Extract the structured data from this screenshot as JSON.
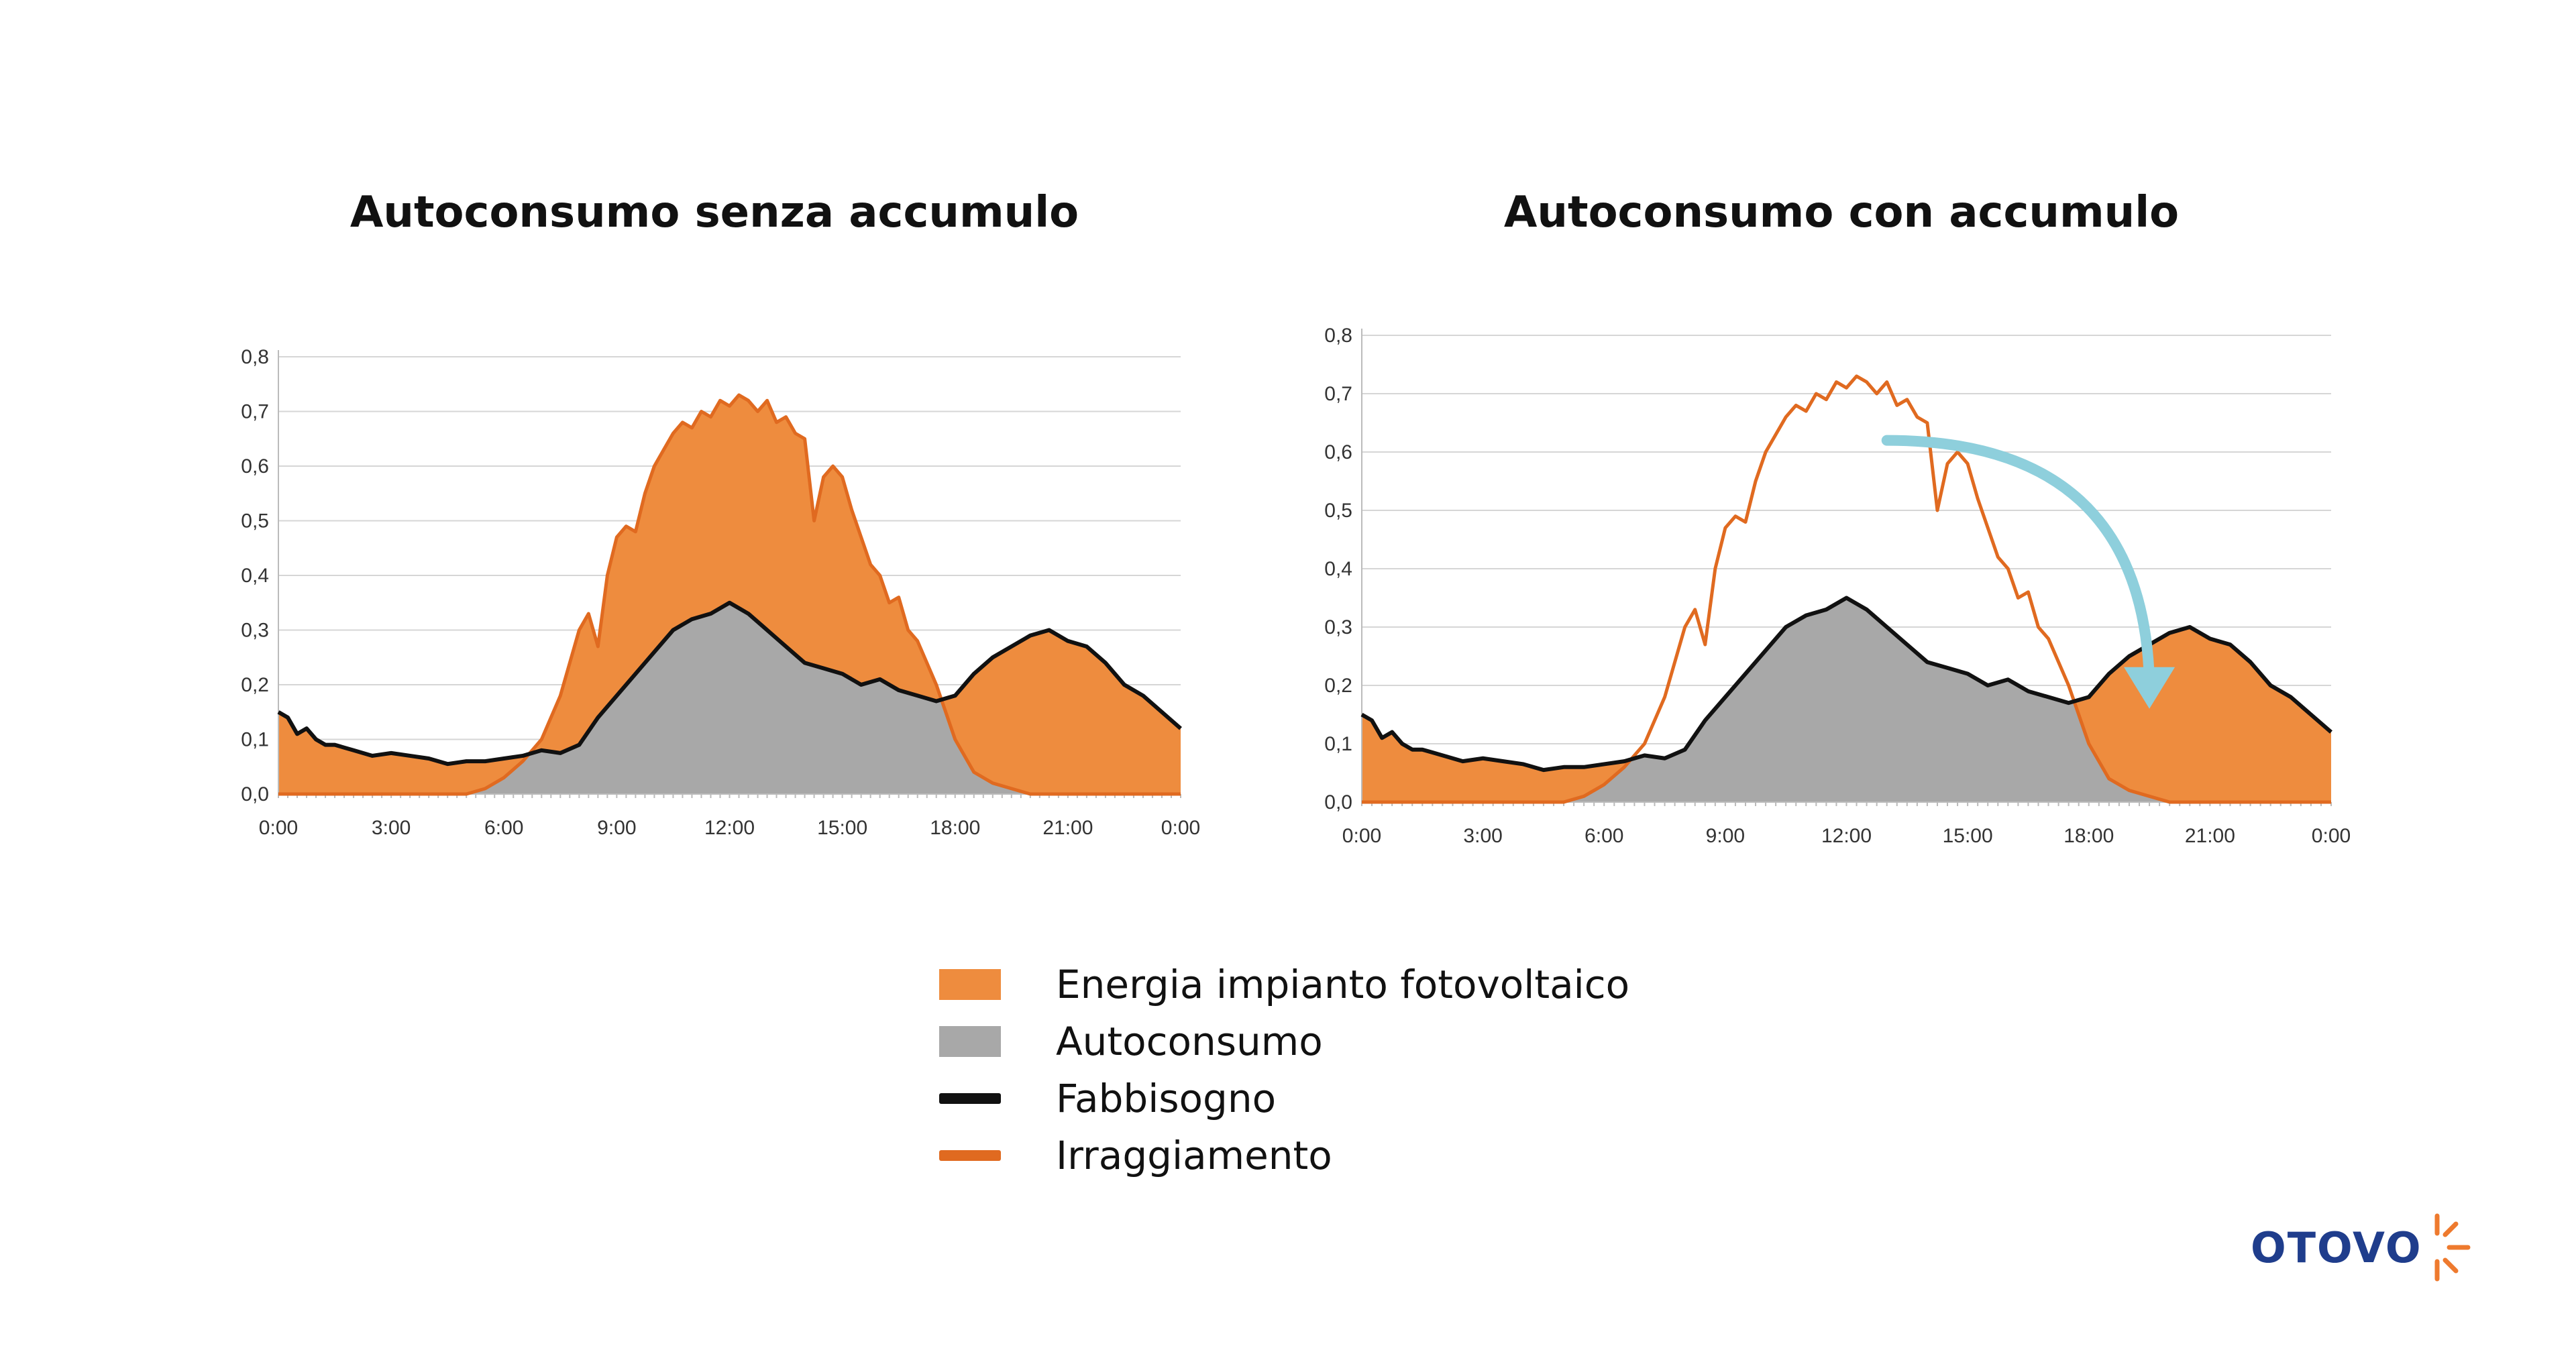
{
  "logo": {
    "text": "OTOVO"
  },
  "legend": [
    {
      "label": "Energia impianto fotovoltaico",
      "style": "fill",
      "color": "#ee8c3e"
    },
    {
      "label": "Autoconsumo",
      "style": "fill",
      "color": "#a8a8a8"
    },
    {
      "label": "Fabbisogno",
      "style": "line",
      "color": "#111111"
    },
    {
      "label": "Irraggiamento",
      "style": "line",
      "color": "#e06a20"
    }
  ],
  "chart_data": [
    {
      "type": "area",
      "title": "Autoconsumo senza accumulo",
      "xlabel": "",
      "ylabel": "",
      "x_unit": "hours",
      "xlim": [
        0,
        24
      ],
      "ylim": [
        0,
        0.8
      ],
      "x_tick_labels": [
        "0:00",
        "3:00",
        "6:00",
        "9:00",
        "12:00",
        "15:00",
        "18:00",
        "21:00",
        "0:00"
      ],
      "y_tick_labels": [
        "0,0",
        "0,1",
        "0,2",
        "0,3",
        "0,4",
        "0,5",
        "0,6",
        "0,7",
        "0,8"
      ],
      "grid": true,
      "legend": "bottom",
      "series": [
        {
          "name": "Fabbisogno",
          "kind": "line",
          "color": "#111111",
          "x": [
            0,
            0.25,
            0.5,
            0.75,
            1,
            1.25,
            1.5,
            1.75,
            2,
            2.5,
            3,
            3.5,
            4,
            4.5,
            5,
            5.5,
            6,
            6.5,
            7,
            7.5,
            8,
            8.5,
            9,
            9.5,
            10,
            10.5,
            11,
            11.5,
            12,
            12.25,
            12.5,
            13,
            13.5,
            14,
            14.5,
            15,
            15.5,
            16,
            16.5,
            17,
            17.5,
            18,
            18.5,
            19,
            19.5,
            20,
            20.5,
            21,
            21.5,
            22,
            22.5,
            23,
            23.5,
            24
          ],
          "y": [
            0.15,
            0.14,
            0.11,
            0.12,
            0.1,
            0.09,
            0.09,
            0.085,
            0.08,
            0.07,
            0.075,
            0.07,
            0.065,
            0.055,
            0.06,
            0.06,
            0.065,
            0.07,
            0.08,
            0.075,
            0.09,
            0.14,
            0.18,
            0.22,
            0.26,
            0.3,
            0.32,
            0.33,
            0.35,
            0.34,
            0.33,
            0.3,
            0.27,
            0.24,
            0.23,
            0.22,
            0.2,
            0.21,
            0.19,
            0.18,
            0.17,
            0.18,
            0.22,
            0.25,
            0.27,
            0.29,
            0.3,
            0.28,
            0.27,
            0.24,
            0.2,
            0.18,
            0.15,
            0.12
          ]
        },
        {
          "name": "Irraggiamento",
          "kind": "line",
          "color": "#e06a20",
          "x": [
            0,
            5,
            5.5,
            6,
            6.5,
            7,
            7.5,
            8,
            8.25,
            8.5,
            8.75,
            9,
            9.25,
            9.5,
            9.75,
            10,
            10.25,
            10.5,
            10.75,
            11,
            11.25,
            11.5,
            11.75,
            12,
            12.25,
            12.5,
            12.75,
            13,
            13.25,
            13.5,
            13.75,
            14,
            14.25,
            14.5,
            14.75,
            15,
            15.25,
            15.5,
            15.75,
            16,
            16.25,
            16.5,
            16.75,
            17,
            17.5,
            18,
            18.5,
            19,
            19.5,
            20,
            21,
            24
          ],
          "y": [
            0,
            0,
            0.01,
            0.03,
            0.06,
            0.1,
            0.18,
            0.3,
            0.33,
            0.27,
            0.4,
            0.47,
            0.49,
            0.48,
            0.55,
            0.6,
            0.63,
            0.66,
            0.68,
            0.67,
            0.7,
            0.69,
            0.72,
            0.71,
            0.73,
            0.72,
            0.7,
            0.72,
            0.68,
            0.69,
            0.66,
            0.65,
            0.5,
            0.58,
            0.6,
            0.58,
            0.52,
            0.47,
            0.42,
            0.4,
            0.35,
            0.36,
            0.3,
            0.28,
            0.2,
            0.1,
            0.04,
            0.02,
            0.01,
            0,
            0,
            0
          ]
        }
      ],
      "areas": [
        {
          "name": "Energia impianto fotovoltaico",
          "color": "#ee8c3e",
          "rule": "max(Irraggiamento - Fabbisogno, 0) stacked above Autoconsumo"
        },
        {
          "name": "Autoconsumo",
          "color": "#a8a8a8",
          "rule": "min(Irraggiamento, Fabbisogno)"
        }
      ]
    },
    {
      "type": "area",
      "title": "Autoconsumo con accumulo",
      "xlabel": "",
      "ylabel": "",
      "x_unit": "hours",
      "xlim": [
        0,
        24
      ],
      "ylim": [
        0,
        0.8
      ],
      "x_tick_labels": [
        "0:00",
        "3:00",
        "6:00",
        "9:00",
        "12:00",
        "15:00",
        "18:00",
        "21:00",
        "0:00"
      ],
      "y_tick_labels": [
        "0,0",
        "0,1",
        "0,2",
        "0,3",
        "0,4",
        "0,5",
        "0,6",
        "0,7",
        "0,8"
      ],
      "grid": true,
      "legend": "bottom",
      "arrow": {
        "from_x": 13,
        "from_y": 0.62,
        "to_x": 19.5,
        "to_y": 0.16,
        "color": "#8ecfdc"
      },
      "series": [
        {
          "name": "Fabbisogno",
          "kind": "line",
          "color": "#111111",
          "x": [
            0,
            0.25,
            0.5,
            0.75,
            1,
            1.25,
            1.5,
            1.75,
            2,
            2.5,
            3,
            3.5,
            4,
            4.5,
            5,
            5.5,
            6,
            6.5,
            7,
            7.5,
            8,
            8.5,
            9,
            9.5,
            10,
            10.5,
            11,
            11.5,
            12,
            12.25,
            12.5,
            13,
            13.5,
            14,
            14.5,
            15,
            15.5,
            16,
            16.5,
            17,
            17.5,
            18,
            18.5,
            19,
            19.5,
            20,
            20.5,
            21,
            21.5,
            22,
            22.5,
            23,
            23.5,
            24
          ],
          "y": [
            0.15,
            0.14,
            0.11,
            0.12,
            0.1,
            0.09,
            0.09,
            0.085,
            0.08,
            0.07,
            0.075,
            0.07,
            0.065,
            0.055,
            0.06,
            0.06,
            0.065,
            0.07,
            0.08,
            0.075,
            0.09,
            0.14,
            0.18,
            0.22,
            0.26,
            0.3,
            0.32,
            0.33,
            0.35,
            0.34,
            0.33,
            0.3,
            0.27,
            0.24,
            0.23,
            0.22,
            0.2,
            0.21,
            0.19,
            0.18,
            0.17,
            0.18,
            0.22,
            0.25,
            0.27,
            0.29,
            0.3,
            0.28,
            0.27,
            0.24,
            0.2,
            0.18,
            0.15,
            0.12
          ]
        },
        {
          "name": "Irraggiamento",
          "kind": "line",
          "color": "#e06a20",
          "x": [
            0,
            5,
            5.5,
            6,
            6.5,
            7,
            7.5,
            8,
            8.25,
            8.5,
            8.75,
            9,
            9.25,
            9.5,
            9.75,
            10,
            10.25,
            10.5,
            10.75,
            11,
            11.25,
            11.5,
            11.75,
            12,
            12.25,
            12.5,
            12.75,
            13,
            13.25,
            13.5,
            13.75,
            14,
            14.25,
            14.5,
            14.75,
            15,
            15.25,
            15.5,
            15.75,
            16,
            16.25,
            16.5,
            16.75,
            17,
            17.5,
            18,
            18.5,
            19,
            19.5,
            20,
            21,
            24
          ],
          "y": [
            0,
            0,
            0.01,
            0.03,
            0.06,
            0.1,
            0.18,
            0.3,
            0.33,
            0.27,
            0.4,
            0.47,
            0.49,
            0.48,
            0.55,
            0.6,
            0.63,
            0.66,
            0.68,
            0.67,
            0.7,
            0.69,
            0.72,
            0.71,
            0.73,
            0.72,
            0.7,
            0.72,
            0.68,
            0.69,
            0.66,
            0.65,
            0.5,
            0.58,
            0.6,
            0.58,
            0.52,
            0.47,
            0.42,
            0.4,
            0.35,
            0.36,
            0.3,
            0.28,
            0.2,
            0.1,
            0.04,
            0.02,
            0.01,
            0,
            0,
            0
          ]
        }
      ],
      "areas": [
        {
          "name": "Autoconsumo",
          "color": "#a8a8a8",
          "rule": "min(Irraggiamento, Fabbisogno)"
        },
        {
          "name": "Energia impianto fotovoltaico",
          "color": "#ee8c3e",
          "rule": "Fabbisogno - Irraggiamento where Fabbisogno exceeds Irraggiamento (stored energy)"
        }
      ]
    }
  ]
}
